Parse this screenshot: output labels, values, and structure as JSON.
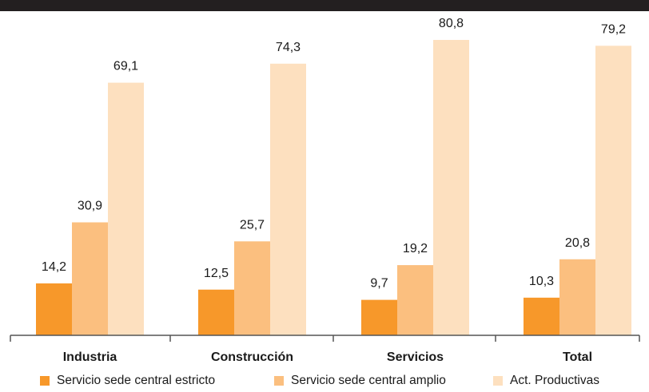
{
  "chart_data": {
    "type": "bar",
    "categories": [
      "Industria",
      "Construcción",
      "Servicios",
      "Total"
    ],
    "series": [
      {
        "name": "Servicio sede central estricto",
        "color": "#f7982a",
        "values": [
          14.2,
          12.5,
          9.7,
          10.3
        ],
        "labels": [
          "14,2",
          "12,5",
          "9,7",
          "10,3"
        ]
      },
      {
        "name": "Servicio sede central amplio",
        "color": "#fbbf7f",
        "values": [
          30.9,
          25.7,
          19.2,
          20.8
        ],
        "labels": [
          "30,9",
          "25,7",
          "19,2",
          "20,8"
        ]
      },
      {
        "name": "Act. Productivas",
        "color": "#fde0bf",
        "values": [
          69.1,
          74.3,
          80.8,
          79.2
        ],
        "labels": [
          "69,1",
          "74,3",
          "80,8",
          "79,2"
        ]
      }
    ],
    "title": "",
    "xlabel": "",
    "ylabel": "",
    "ylim": [
      0,
      80.8
    ],
    "grid": false,
    "legend_position": "bottom",
    "axis_color": "#555555",
    "header_bar_color": "#231f20"
  }
}
